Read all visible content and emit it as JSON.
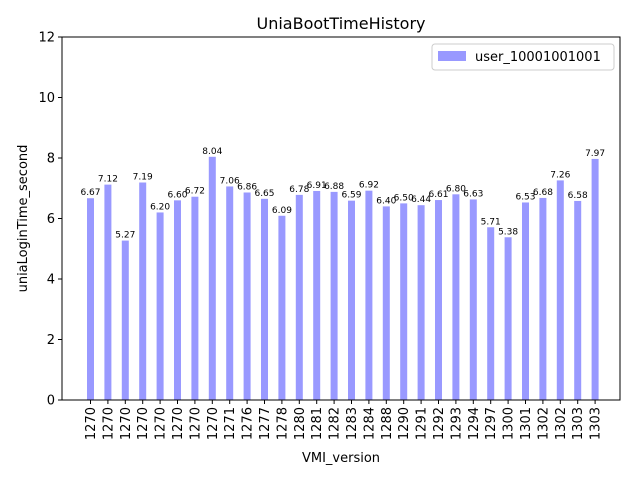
{
  "chart_data": {
    "type": "bar",
    "title": "UniaBootTimeHistory",
    "xlabel": "VMI_version",
    "ylabel": "uniaLoginTime_second",
    "ylim": [
      0,
      12
    ],
    "yticks": [
      0,
      2,
      4,
      6,
      8,
      10,
      12
    ],
    "grid": false,
    "legend_position": "top-right",
    "categories": [
      "1270",
      "1270",
      "1270",
      "1270",
      "1270",
      "1270",
      "1270",
      "1270",
      "1271",
      "1276",
      "1277",
      "1278",
      "1280",
      "1281",
      "1282",
      "1283",
      "1284",
      "1288",
      "1290",
      "1291",
      "1292",
      "1293",
      "1294",
      "1297",
      "1300",
      "1301",
      "1302",
      "1302",
      "1303",
      "1303"
    ],
    "series": [
      {
        "name": "user_10001001001",
        "color": "#9999ff",
        "values": [
          6.67,
          7.12,
          5.27,
          7.19,
          6.2,
          6.6,
          6.72,
          8.04,
          7.06,
          6.86,
          6.65,
          6.09,
          6.78,
          6.91,
          6.88,
          6.59,
          6.92,
          6.4,
          6.5,
          6.44,
          6.61,
          6.8,
          6.63,
          5.71,
          5.38,
          6.53,
          6.68,
          7.26,
          6.58,
          7.97
        ],
        "labels": [
          "6.67",
          "7.12",
          "5.27",
          "7.19",
          "6.20",
          "6.60",
          "6.72",
          "8.04",
          "7.06",
          "6.86",
          "6.65",
          "6.09",
          "6.78",
          "6.91",
          "6.88",
          "6.59",
          "6.92",
          "6.40",
          "6.50",
          "6.44",
          "6.61",
          "6.80",
          "6.63",
          "5.71",
          "5.38",
          "6.53",
          "6.68",
          "7.26",
          "6.58",
          "7.97"
        ]
      }
    ]
  }
}
